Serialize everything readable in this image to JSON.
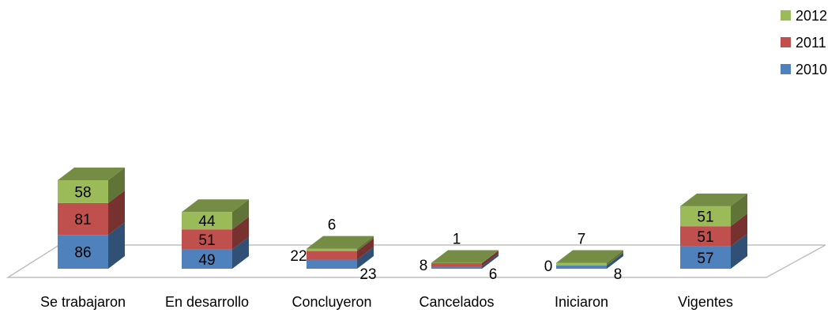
{
  "chart_data": {
    "type": "bar",
    "stacked": true,
    "three_d": true,
    "categories": [
      "Se trabajaron",
      "En desarrollo",
      "Concluyeron",
      "Cancelados",
      "Iniciaron",
      "Vigentes"
    ],
    "series": [
      {
        "name": "2010",
        "color": "#4F81BD",
        "values": [
          86,
          49,
          23,
          6,
          8,
          57
        ]
      },
      {
        "name": "2011",
        "color": "#C0504D",
        "values": [
          81,
          51,
          22,
          8,
          0,
          51
        ]
      },
      {
        "name": "2012",
        "color": "#9BBB59",
        "values": [
          58,
          44,
          6,
          1,
          7,
          51
        ]
      }
    ],
    "title": "",
    "xlabel": "",
    "ylabel": "",
    "ylim": [
      0,
      225
    ],
    "grid": false,
    "legend": "top-right"
  }
}
